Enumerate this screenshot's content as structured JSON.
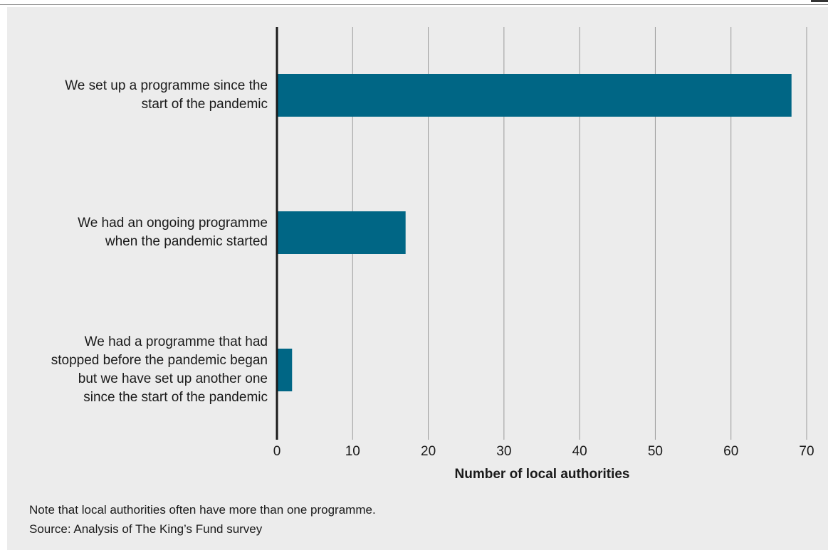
{
  "chart_data": {
    "type": "bar",
    "orientation": "horizontal",
    "categories": [
      "We set up a programme since the start of the pandemic",
      "We had an ongoing programme when the pandemic started",
      "We had a programme that had stopped before the pandemic began but we have set up another one since the start of the pandemic"
    ],
    "category_lines": [
      [
        "We set up a programme since the",
        "start of the pandemic"
      ],
      [
        "We had an ongoing programme",
        "when the pandemic started"
      ],
      [
        "We had a programme that had",
        "stopped before the pandemic began",
        "but we have set up another one",
        "since the start of the pandemic"
      ]
    ],
    "values": [
      68,
      17,
      2
    ],
    "xlabel": "Number of local authorities",
    "ylabel": "",
    "xlim": [
      0,
      70
    ],
    "xticks": [
      0,
      10,
      20,
      30,
      40,
      50,
      60,
      70
    ],
    "grid": true,
    "bar_color": "#006685",
    "background_color": "#ececec"
  },
  "notes": {
    "note": "Note that local authorities often have more than one programme.",
    "source": "Source: Analysis of The King’s Fund survey"
  }
}
